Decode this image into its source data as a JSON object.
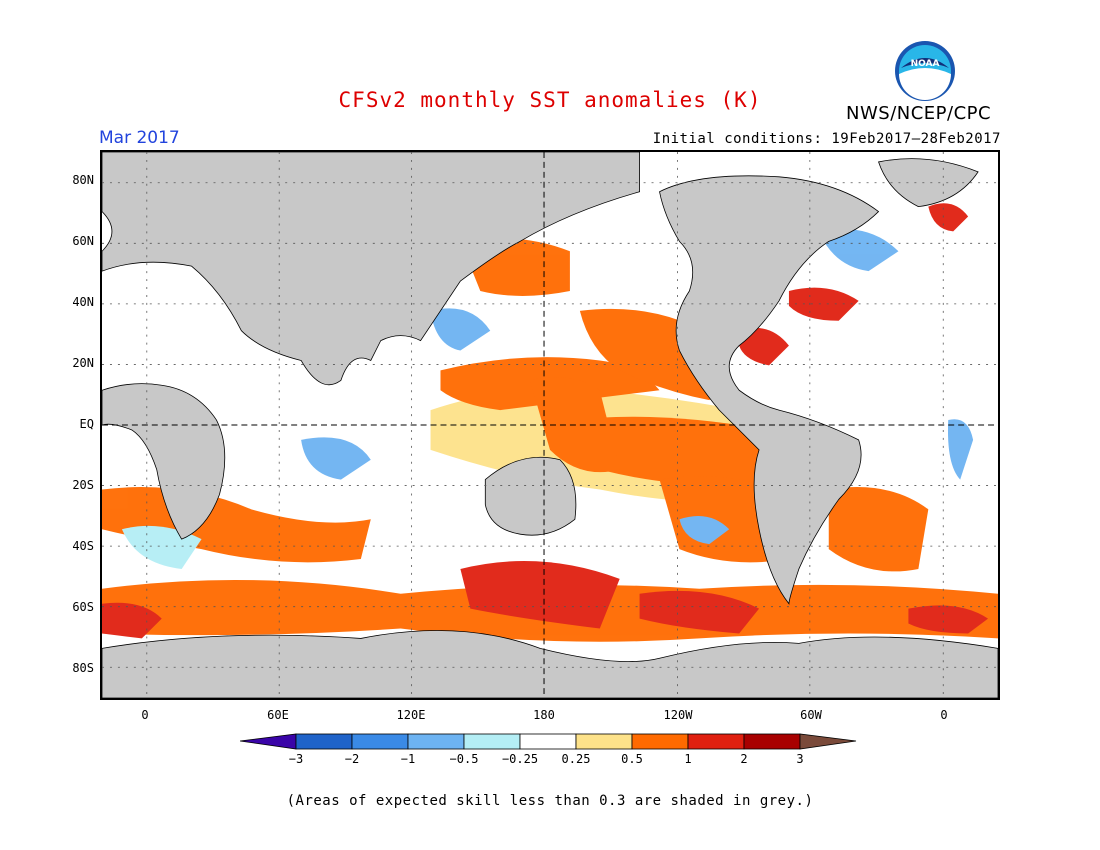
{
  "title": "CFSv2 monthly SST anomalies (K)",
  "agency": "NWS/NCEP/CPC",
  "logo_text": "NOAA",
  "valid_month": "Mar 2017",
  "initial_conditions": "Initial conditions: 19Feb2017–28Feb2017",
  "lat_labels": [
    "80N",
    "60N",
    "40N",
    "20N",
    "EQ",
    "20S",
    "40S",
    "60S",
    "80S"
  ],
  "lon_labels": [
    "0",
    "60E",
    "120E",
    "180",
    "120W",
    "60W",
    "0"
  ],
  "colorbar": {
    "ticks": [
      "−3",
      "−2",
      "−1",
      "−0.5",
      "−0.25",
      "0.25",
      "0.5",
      "1",
      "2",
      "3"
    ],
    "colors": [
      "#3a04a8",
      "#1f63c9",
      "#3a8ae6",
      "#6db3f2",
      "#b4eef5",
      "#ffffff",
      "#fde28a",
      "#ff6a00",
      "#e02010",
      "#a80000",
      "#7a4a3a"
    ]
  },
  "skill_note": "(Areas of expected skill less than 0.3 are shaded in grey.)",
  "colors": {
    "title": "#dd0000",
    "valid_month": "#2244dd",
    "land": "#c8c8c8",
    "grey_skill": "#c8c8c8"
  }
}
